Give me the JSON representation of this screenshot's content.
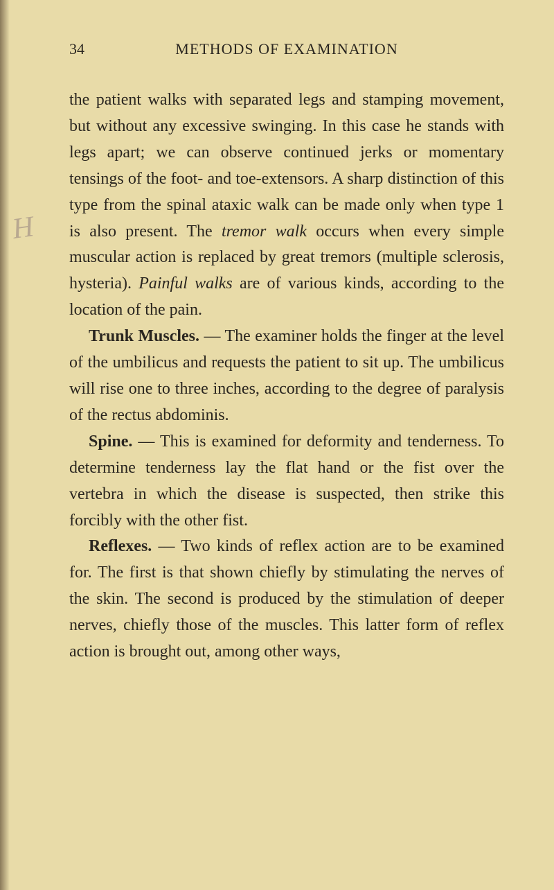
{
  "page": {
    "number": "34",
    "header": "METHODS OF EXAMINATION",
    "margin_note": "H"
  },
  "paragraphs": {
    "p1_part1": "the patient walks with separated legs and stamping movement, but without any excessive swinging. In this case he stands with legs apart; we can observe continued jerks or momentary tensings of the foot- and toe-extensors. A sharp dis­tinction of this type from the spinal ataxic walk can be made only when type 1 is also present. The ",
    "p1_italic1": "tremor walk",
    "p1_part2": " occurs when every simple muscu­lar action is replaced by great tremors (multiple sclerosis, hysteria). ",
    "p1_italic2": "Painful walks",
    "p1_part3": " are of various kinds, according to the location of the pain.",
    "p2_bold": "Trunk Muscles.",
    "p2_text": " — The examiner holds the finger at the level of the umbilicus and requests the patient to sit up. The umbilicus will rise one to three inches, according to the degree of paralysis of the rectus abdominis.",
    "p3_bold": "Spine.",
    "p3_text": " — This is examined for deformity and tenderness. To determine tenderness lay the flat hand or the fist over the vertebra in which the disease is suspected, then strike this forcibly with the other fist.",
    "p4_bold": "Reflexes.",
    "p4_text": " — Two kinds of reflex action are to be examined for. The first is that shown chiefly by stimulating the nerves of the skin. The second is produced by the stimulation of deeper nerves, chiefly those of the muscles. This latter form of reflex action is brought out, among other ways,"
  },
  "styling": {
    "background_color": "#e8dba8",
    "text_color": "#2a2620",
    "body_font_size": 24,
    "header_font_size": 22,
    "line_height": 1.58,
    "margin_note_color": "#b8a890"
  }
}
